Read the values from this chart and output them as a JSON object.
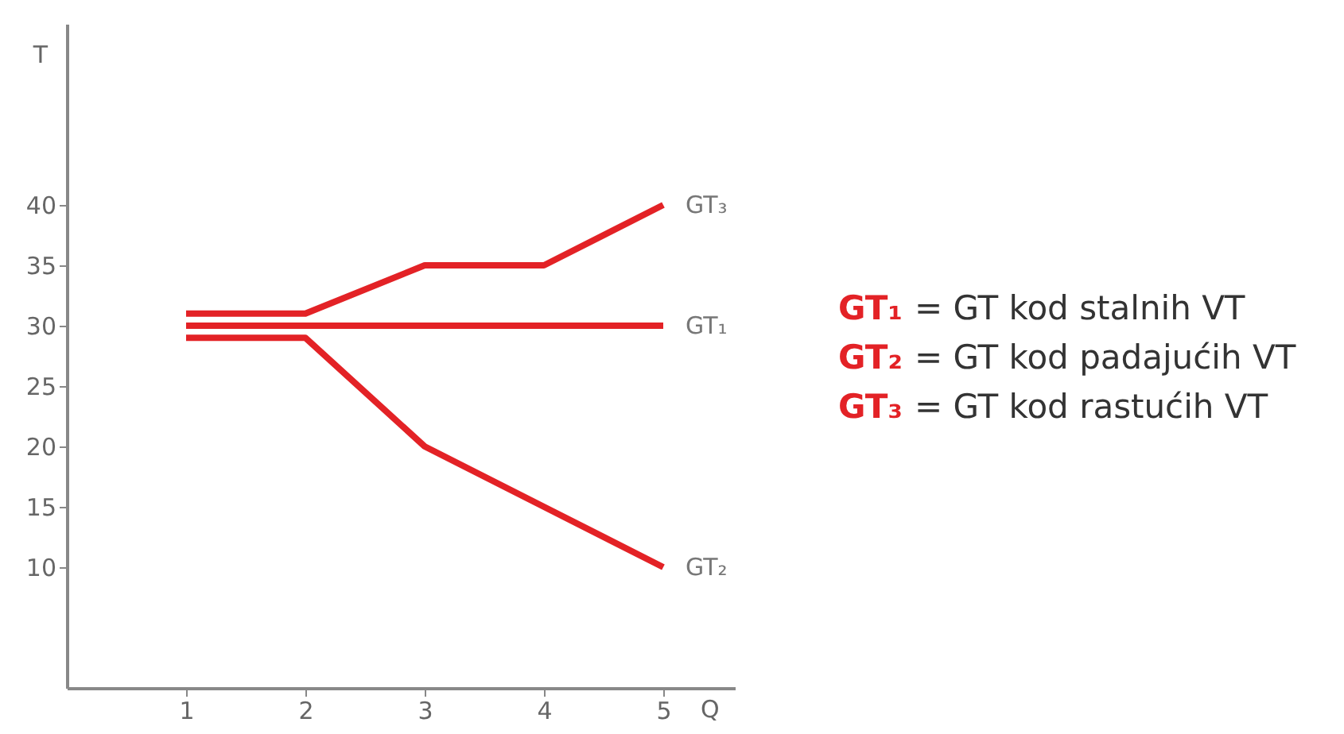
{
  "chart_data": {
    "type": "line",
    "xlabel": "Q",
    "ylabel": "T",
    "x": [
      1,
      2,
      3,
      4,
      5
    ],
    "series": [
      {
        "name": "GT₃",
        "color": "#e32226",
        "values": [
          31,
          31,
          35,
          35,
          40
        ]
      },
      {
        "name": "GT₁",
        "color": "#e32226",
        "values": [
          30,
          30,
          30,
          30,
          30
        ]
      },
      {
        "name": "GT₂",
        "color": "#e32226",
        "values": [
          29,
          29,
          20,
          15,
          10
        ]
      }
    ],
    "xlim": [
      0,
      5.6
    ],
    "xticks": [
      1,
      2,
      3,
      4,
      5
    ],
    "ylim": [
      0,
      55
    ],
    "yticks": [
      10,
      15,
      20,
      25,
      30,
      35,
      40
    ],
    "grid": false,
    "marker": "none",
    "line_style": "solid",
    "annotations": [
      "GT₁ = GT kod stalnih VT",
      "GT₂ = GT kod padajućih VT",
      "GT₃ = GT kod rastućih VT"
    ]
  }
}
